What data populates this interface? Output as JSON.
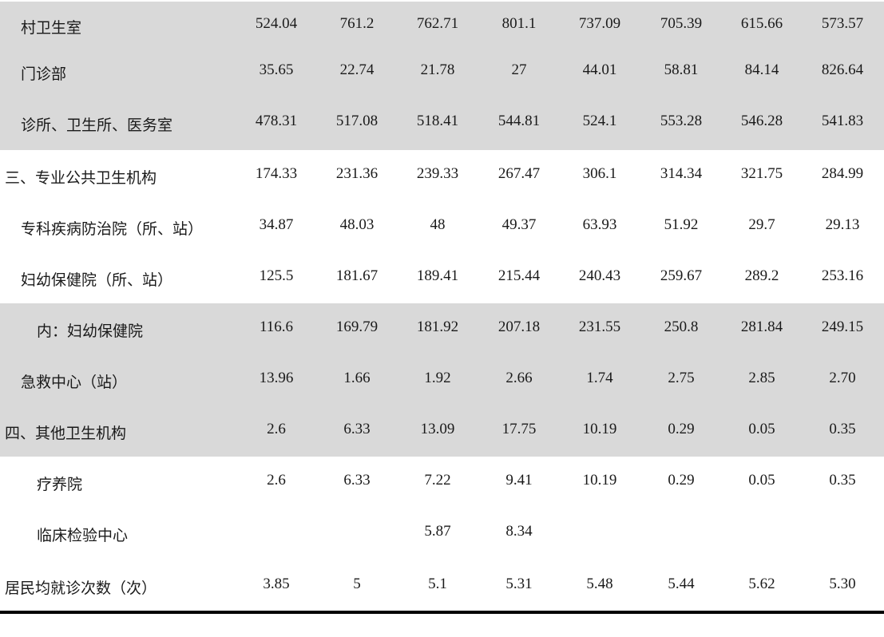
{
  "rows": [
    {
      "label": "村卫生室",
      "indent": 1,
      "shaded": true,
      "values": [
        "524.04",
        "761.2",
        "762.71",
        "801.1",
        "737.09",
        "705.39",
        "615.66",
        "573.57"
      ]
    },
    {
      "label": "门诊部",
      "indent": 1,
      "shaded": true,
      "values": [
        "35.65",
        "22.74",
        "21.78",
        "27",
        "44.01",
        "58.81",
        "84.14",
        "826.64"
      ]
    },
    {
      "label": "诊所、卫生所、医务室",
      "indent": 1,
      "shaded": true,
      "values": [
        "478.31",
        "517.08",
        "518.41",
        "544.81",
        "524.1",
        "553.28",
        "546.28",
        "541.83"
      ]
    },
    {
      "label": "三、专业公共卫生机构",
      "indent": 0,
      "shaded": false,
      "values": [
        "174.33",
        "231.36",
        "239.33",
        "267.47",
        "306.1",
        "314.34",
        "321.75",
        "284.99"
      ]
    },
    {
      "label": "专科疾病防治院（所、站）",
      "indent": 1,
      "shaded": false,
      "values": [
        "34.87",
        "48.03",
        "48",
        "49.37",
        "63.93",
        "51.92",
        "29.7",
        "29.13"
      ]
    },
    {
      "label": "妇幼保健院（所、站）",
      "indent": 1,
      "shaded": false,
      "values": [
        "125.5",
        "181.67",
        "189.41",
        "215.44",
        "240.43",
        "259.67",
        "289.2",
        "253.16"
      ]
    },
    {
      "label": "内：妇幼保健院",
      "indent": 2,
      "shaded": true,
      "values": [
        "116.6",
        "169.79",
        "181.92",
        "207.18",
        "231.55",
        "250.8",
        "281.84",
        "249.15"
      ]
    },
    {
      "label": "急救中心（站）",
      "indent": 1,
      "shaded": true,
      "values": [
        "13.96",
        "1.66",
        "1.92",
        "2.66",
        "1.74",
        "2.75",
        "2.85",
        "2.70"
      ]
    },
    {
      "label": "四、其他卫生机构",
      "indent": 0,
      "shaded": true,
      "values": [
        "2.6",
        "6.33",
        "13.09",
        "17.75",
        "10.19",
        "0.29",
        "0.05",
        "0.35"
      ]
    },
    {
      "label": "疗养院",
      "indent": 2,
      "shaded": false,
      "values": [
        "2.6",
        "6.33",
        "7.22",
        "9.41",
        "10.19",
        "0.29",
        "0.05",
        "0.35"
      ]
    },
    {
      "label": "临床检验中心",
      "indent": 2,
      "shaded": false,
      "values": [
        "",
        "",
        "5.87",
        "8.34",
        "",
        "",
        "",
        ""
      ]
    },
    {
      "label": "居民均就诊次数（次）",
      "indent": 0,
      "shaded": false,
      "values": [
        "3.85",
        "5",
        "5.1",
        "5.31",
        "5.48",
        "5.44",
        "5.62",
        "5.30"
      ]
    }
  ]
}
